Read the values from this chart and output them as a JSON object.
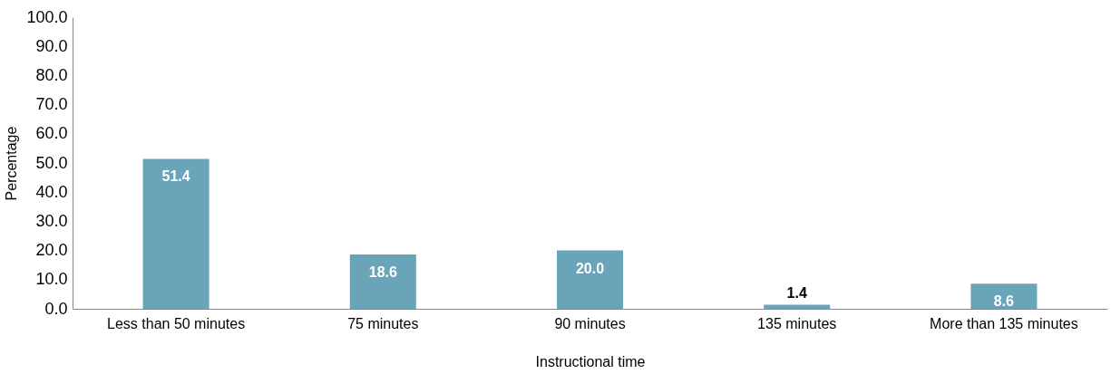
{
  "chart_data": {
    "type": "bar",
    "xlabel": "Instructional time",
    "ylabel": "Percentage",
    "categories": [
      "Less than 50 minutes",
      "75 minutes",
      "90 minutes",
      "135 minutes",
      "More than 135 minutes"
    ],
    "values": [
      51.4,
      18.6,
      20.0,
      1.4,
      8.6
    ],
    "value_labels": [
      "51.4",
      "18.6",
      "20.0",
      "1.4",
      "8.6"
    ],
    "color": "#6aa4b9",
    "ylim": [
      0,
      100
    ],
    "yticks": [
      {
        "value": 0,
        "label": "0.0"
      },
      {
        "value": 10,
        "label": "10.0"
      },
      {
        "value": 20,
        "label": "20.0"
      },
      {
        "value": 30,
        "label": "30.0"
      },
      {
        "value": 40,
        "label": "40.0"
      },
      {
        "value": 50,
        "label": "50.0"
      },
      {
        "value": 60,
        "label": "60.0"
      },
      {
        "value": 70,
        "label": "70.0"
      },
      {
        "value": 80,
        "label": "80.0"
      },
      {
        "value": 90,
        "label": "90.0"
      },
      {
        "value": 100,
        "label": "100.0"
      }
    ],
    "grid": false
  }
}
